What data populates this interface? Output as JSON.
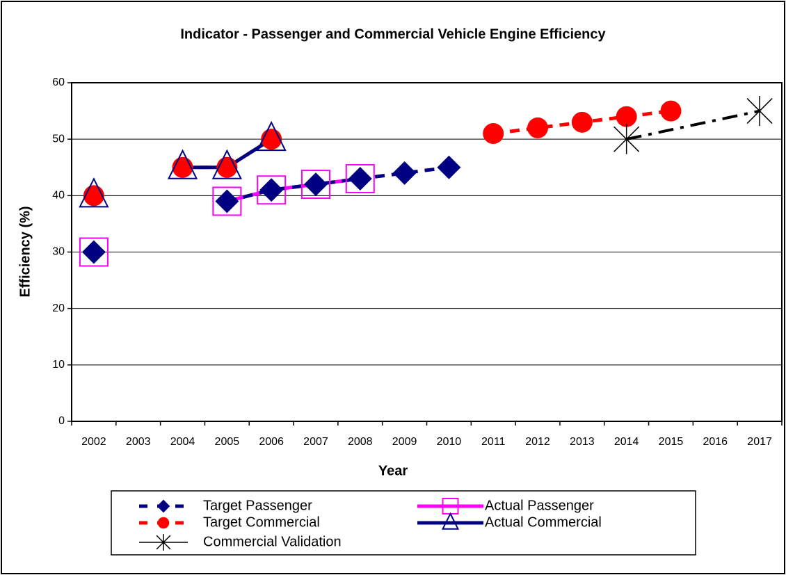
{
  "chart_data": {
    "type": "line",
    "title": "Indicator - Passenger and Commercial Vehicle Engine Efficiency",
    "x_label": "Year",
    "y_label": "Efficiency (%)",
    "categories": [
      "2002",
      "2003",
      "2004",
      "2005",
      "2006",
      "2007",
      "2008",
      "2009",
      "2010",
      "2011",
      "2012",
      "2013",
      "2014",
      "2015",
      "2016",
      "2017"
    ],
    "ylim": [
      0,
      60
    ],
    "yticks": [
      0,
      10,
      20,
      30,
      40,
      50,
      60
    ],
    "grid": true,
    "series": [
      {
        "name": "Target Passenger",
        "color": "#000080",
        "line": "dash",
        "marker": "diamond",
        "values": [
          30,
          null,
          null,
          39,
          41,
          42,
          43,
          44,
          45,
          null,
          null,
          null,
          null,
          null,
          null,
          null
        ]
      },
      {
        "name": "Actual Passenger",
        "color": "#ff00ff",
        "line": "solid",
        "marker": "square",
        "values": [
          30,
          null,
          null,
          39,
          41,
          42,
          43,
          null,
          null,
          null,
          null,
          null,
          null,
          null,
          null,
          null
        ]
      },
      {
        "name": "Target Commercial",
        "color": "#ff0000",
        "line": "dash",
        "marker": "circle",
        "values": [
          40,
          null,
          45,
          45,
          50,
          null,
          null,
          null,
          null,
          51,
          52,
          53,
          54,
          55,
          null,
          null
        ]
      },
      {
        "name": "Actual Commercial",
        "color": "#000080",
        "line": "solid",
        "marker": "triangle",
        "values": [
          40,
          null,
          45,
          45,
          50,
          null,
          null,
          null,
          null,
          null,
          null,
          null,
          null,
          null,
          null,
          null
        ]
      },
      {
        "name": "Commercial Validation",
        "color": "#000000",
        "line": "dashdot",
        "marker": "asterisk",
        "span_gaps": true,
        "values": [
          null,
          null,
          null,
          null,
          null,
          null,
          null,
          null,
          null,
          null,
          null,
          null,
          50,
          null,
          null,
          55
        ]
      }
    ]
  }
}
